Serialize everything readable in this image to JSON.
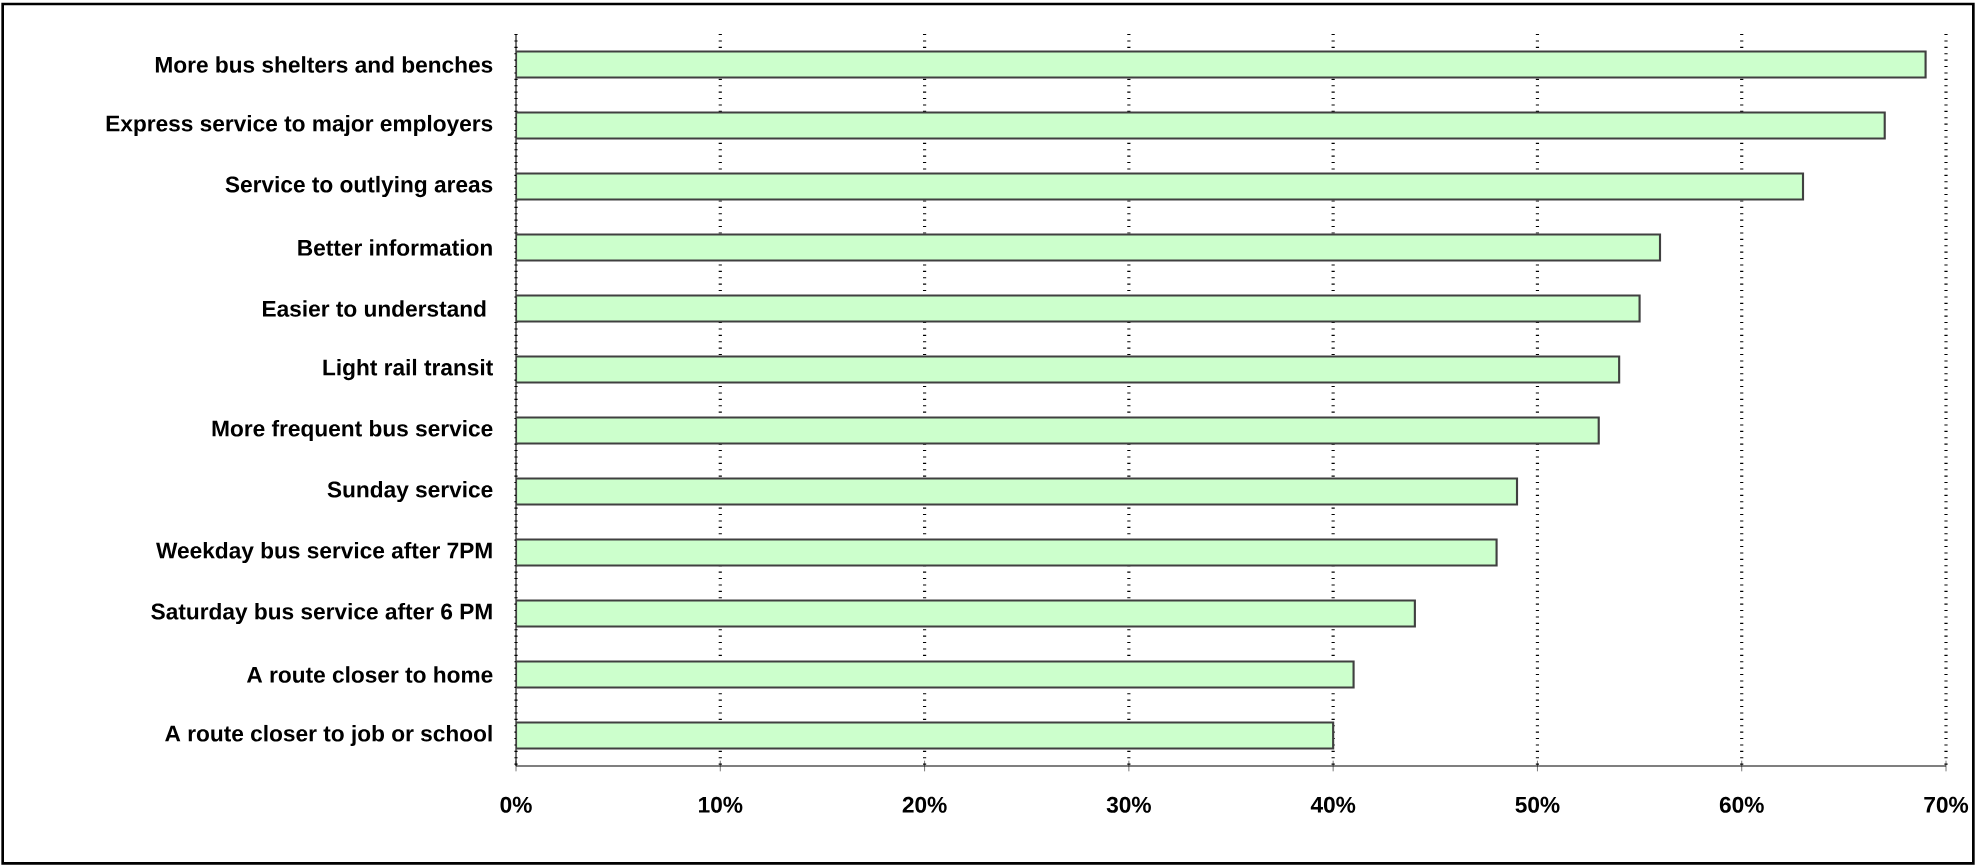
{
  "chart_data": {
    "type": "bar",
    "orientation": "horizontal",
    "categories": [
      "More bus shelters and benches",
      "Express service to major employers",
      "Service to outlying areas",
      "Better information",
      "Easier to understand ",
      "Light rail transit",
      "More frequent bus service",
      "Sunday service",
      "Weekday bus service after 7PM",
      "Saturday bus service after 6 PM",
      "A route closer to home",
      "A route closer to job or school"
    ],
    "values": [
      69,
      67,
      63,
      56,
      55,
      54,
      53,
      49,
      48,
      44,
      41,
      40
    ],
    "color": "#ccffcc",
    "xlim": [
      0,
      70
    ],
    "xticks": [
      {
        "value": 0,
        "label": "0%"
      },
      {
        "value": 10,
        "label": "10%"
      },
      {
        "value": 20,
        "label": "20%"
      },
      {
        "value": 30,
        "label": "30%"
      },
      {
        "value": 40,
        "label": "40%"
      },
      {
        "value": 50,
        "label": "50%"
      },
      {
        "value": 60,
        "label": "60%"
      },
      {
        "value": 70,
        "label": "70%"
      }
    ],
    "grid": "x"
  }
}
